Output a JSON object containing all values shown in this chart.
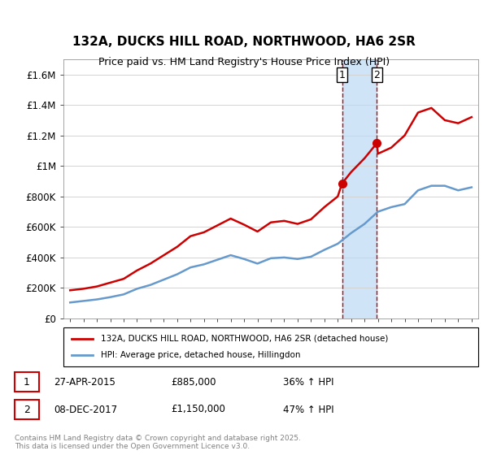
{
  "title": "132A, DUCKS HILL ROAD, NORTHWOOD, HA6 2SR",
  "subtitle": "Price paid vs. HM Land Registry's House Price Index (HPI)",
  "ylabel_ticks": [
    "£0",
    "£200K",
    "£400K",
    "£600K",
    "£800K",
    "£1M",
    "£1.2M",
    "£1.4M",
    "£1.6M"
  ],
  "ytick_values": [
    0,
    200000,
    400000,
    600000,
    800000,
    1000000,
    1200000,
    1400000,
    1600000
  ],
  "ylim": [
    0,
    1700000
  ],
  "legend1_label": "132A, DUCKS HILL ROAD, NORTHWOOD, HA6 2SR (detached house)",
  "legend2_label": "HPI: Average price, detached house, Hillingdon",
  "transaction1_label": "1",
  "transaction1_date": "27-APR-2015",
  "transaction1_price": "£885,000",
  "transaction1_hpi": "36% ↑ HPI",
  "transaction2_label": "2",
  "transaction2_date": "08-DEC-2017",
  "transaction2_price": "£1,150,000",
  "transaction2_hpi": "47% ↑ HPI",
  "footer": "Contains HM Land Registry data © Crown copyright and database right 2025.\nThis data is licensed under the Open Government Licence v3.0.",
  "red_color": "#cc0000",
  "blue_color": "#6699cc",
  "shade_color": "#d0e4f7",
  "marker1_year": 2015.32,
  "marker2_year": 2017.93,
  "hpi_years": [
    1995,
    1996,
    1997,
    1998,
    1999,
    2000,
    2001,
    2002,
    2003,
    2004,
    2005,
    2006,
    2007,
    2008,
    2009,
    2010,
    2011,
    2012,
    2013,
    2014,
    2015,
    2016,
    2017,
    2018,
    2019,
    2020,
    2021,
    2022,
    2023,
    2024,
    2025
  ],
  "hpi_values": [
    105000,
    115000,
    125000,
    140000,
    158000,
    195000,
    220000,
    255000,
    290000,
    335000,
    355000,
    385000,
    415000,
    390000,
    360000,
    395000,
    400000,
    390000,
    405000,
    450000,
    490000,
    560000,
    620000,
    700000,
    730000,
    750000,
    840000,
    870000,
    870000,
    840000,
    860000
  ],
  "prop_years": [
    1995,
    1996,
    1997,
    1998,
    1999,
    2000,
    2001,
    2002,
    2003,
    2004,
    2005,
    2006,
    2007,
    2008,
    2009,
    2010,
    2011,
    2012,
    2013,
    2014,
    2015,
    2015.32,
    2016,
    2017,
    2017.93,
    2018,
    2019,
    2020,
    2021,
    2022,
    2023,
    2024,
    2025
  ],
  "prop_values": [
    185000,
    195000,
    210000,
    235000,
    260000,
    315000,
    360000,
    415000,
    470000,
    540000,
    565000,
    610000,
    655000,
    615000,
    570000,
    630000,
    640000,
    620000,
    650000,
    730000,
    800000,
    885000,
    960000,
    1050000,
    1150000,
    1080000,
    1120000,
    1200000,
    1350000,
    1380000,
    1300000,
    1280000,
    1320000
  ]
}
